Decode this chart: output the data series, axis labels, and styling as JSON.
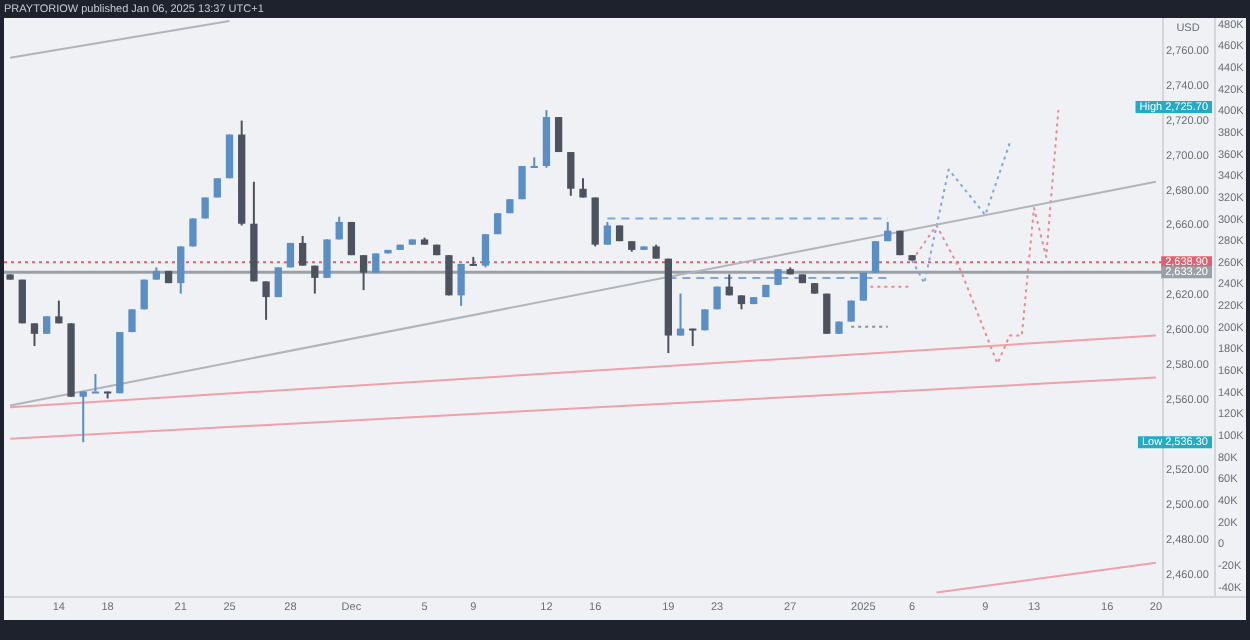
{
  "chart_data": {
    "type": "candlestick",
    "title": "PRAYTORIOW published Jan 06, 2025 13:37 UTC+1",
    "ylabel": "USD",
    "categories": [
      null,
      null,
      null,
      null,
      "14",
      null,
      null,
      null,
      "18",
      null,
      null,
      null,
      null,
      null,
      "21",
      null,
      null,
      null,
      "25",
      null,
      null,
      null,
      null,
      "28",
      null,
      null,
      null,
      null,
      "Dec",
      null,
      null,
      null,
      null,
      null,
      "5",
      null,
      null,
      null,
      "9",
      null,
      null,
      null,
      null,
      null,
      "12",
      null,
      null,
      null,
      "16",
      null,
      null,
      null,
      null,
      null,
      "19",
      null,
      null,
      null,
      "23",
      null,
      null,
      null,
      null,
      null,
      "27",
      null,
      null,
      null,
      null,
      null,
      "2025",
      null,
      null,
      null,
      "6",
      null,
      null,
      null,
      null,
      null,
      "9",
      null,
      null,
      null,
      "13",
      null,
      null,
      null,
      null,
      null,
      "16",
      null,
      null,
      null,
      "20"
    ],
    "ohlc": [
      [
        2632,
        2632,
        2629,
        2629
      ],
      [
        2629,
        2629,
        2604,
        2604
      ],
      [
        2604,
        2604,
        2591,
        2598
      ],
      [
        2598,
        2608,
        2598,
        2608
      ],
      [
        2608,
        2617,
        2604,
        2604
      ],
      [
        2604,
        2604,
        2562,
        2562
      ],
      [
        2562,
        2565,
        2536,
        2565
      ],
      [
        2565,
        2575,
        2565,
        2565
      ],
      [
        2565,
        2565,
        2561,
        2564
      ],
      [
        2564,
        2599,
        2564,
        2599
      ],
      [
        2599,
        2612,
        2599,
        2612
      ],
      [
        2612,
        2629,
        2612,
        2629
      ],
      [
        2629,
        2636,
        2629,
        2634
      ],
      [
        2634,
        2634,
        2627,
        2627
      ],
      [
        2627,
        2648,
        2621,
        2648
      ],
      [
        2648,
        2664,
        2648,
        2664
      ],
      [
        2664,
        2676,
        2664,
        2676
      ],
      [
        2676,
        2687,
        2676,
        2687
      ],
      [
        2687,
        2712,
        2687,
        2712
      ],
      [
        2712,
        2720,
        2660,
        2661
      ],
      [
        2661,
        2685,
        2628,
        2628
      ],
      [
        2628,
        2628,
        2606,
        2619
      ],
      [
        2619,
        2636,
        2619,
        2636
      ],
      [
        2636,
        2650,
        2636,
        2650
      ],
      [
        2650,
        2654,
        2637,
        2637
      ],
      [
        2637,
        2637,
        2621,
        2630
      ],
      [
        2630,
        2652,
        2630,
        2652
      ],
      [
        2652,
        2665,
        2652,
        2662
      ],
      [
        2662,
        2662,
        2643,
        2643
      ],
      [
        2643,
        2643,
        2623,
        2633
      ],
      [
        2633,
        2644,
        2633,
        2644
      ],
      [
        2644,
        2646,
        2644,
        2646
      ],
      [
        2646,
        2649,
        2646,
        2649
      ],
      [
        2649,
        2652,
        2649,
        2652
      ],
      [
        2652,
        2653,
        2649,
        2649
      ],
      [
        2649,
        2649,
        2643,
        2643
      ],
      [
        2643,
        2643,
        2620,
        2620
      ],
      [
        2620,
        2638,
        2614,
        2638
      ],
      [
        2638,
        2642,
        2637,
        2637
      ],
      [
        2637,
        2655,
        2636,
        2655
      ],
      [
        2655,
        2667,
        2655,
        2667
      ],
      [
        2667,
        2675,
        2667,
        2675
      ],
      [
        2675,
        2694,
        2675,
        2694
      ],
      [
        2694,
        2699,
        2694,
        2694
      ],
      [
        2694,
        2726,
        2693,
        2722
      ],
      [
        2722,
        2722,
        2702,
        2702
      ],
      [
        2702,
        2702,
        2677,
        2681
      ],
      [
        2681,
        2687,
        2676,
        2676
      ],
      [
        2676,
        2676,
        2648,
        2649
      ],
      [
        2649,
        2662,
        2649,
        2660
      ],
      [
        2660,
        2660,
        2651,
        2651
      ],
      [
        2651,
        2651,
        2645,
        2646
      ],
      [
        2646,
        2648,
        2646,
        2648
      ],
      [
        2648,
        2649,
        2641,
        2641
      ],
      [
        2641,
        2641,
        2587,
        2597
      ],
      [
        2597,
        2621,
        2597,
        2601
      ],
      [
        2601,
        2601,
        2591,
        2600
      ],
      [
        2600,
        2612,
        2600,
        2612
      ],
      [
        2612,
        2625,
        2612,
        2625
      ],
      [
        2625,
        2632,
        2620,
        2620
      ],
      [
        2620,
        2620,
        2612,
        2615
      ],
      [
        2615,
        2619,
        2615,
        2619
      ],
      [
        2619,
        2626,
        2619,
        2626
      ],
      [
        2626,
        2635,
        2626,
        2635
      ],
      [
        2635,
        2636,
        2632,
        2632
      ],
      [
        2632,
        2632,
        2627,
        2627
      ],
      [
        2627,
        2627,
        2621,
        2621
      ],
      [
        2621,
        2621,
        2598,
        2598
      ],
      [
        2598,
        2605,
        2598,
        2605
      ],
      [
        2605,
        2617,
        2605,
        2617
      ],
      [
        2617,
        2633,
        2617,
        2633
      ],
      [
        2633,
        2651,
        2633,
        2651
      ],
      [
        2651,
        2662,
        2651,
        2657
      ],
      [
        2657,
        2657,
        2643,
        2643
      ],
      [
        2643,
        2643,
        2640,
        2640
      ],
      null,
      null,
      null,
      null,
      null,
      null,
      null,
      null,
      null,
      null,
      null,
      null,
      null,
      null,
      null,
      null,
      null,
      null,
      null,
      null
    ],
    "colors": [
      "#4c525e",
      "#4c525e",
      "#4c525e",
      "#5b8ec2",
      "#4c525e",
      "#4c525e",
      "#5b8ec2",
      "#5b8ec2",
      "#4c525e",
      "#5b8ec2",
      "#5b8ec2",
      "#5b8ec2",
      "#5b8ec2",
      "#4c525e",
      "#5b8ec2",
      "#5b8ec2",
      "#5b8ec2",
      "#5b8ec2",
      "#5b8ec2",
      "#4c525e",
      "#4c525e",
      "#4c525e",
      "#5b8ec2",
      "#5b8ec2",
      "#4c525e",
      "#4c525e",
      "#5b8ec2",
      "#5b8ec2",
      "#4c525e",
      "#4c525e",
      "#5b8ec2",
      "#5b8ec2",
      "#5b8ec2",
      "#5b8ec2",
      "#4c525e",
      "#4c525e",
      "#4c525e",
      "#5b8ec2",
      "#4c525e",
      "#5b8ec2",
      "#5b8ec2",
      "#5b8ec2",
      "#5b8ec2",
      "#5b8ec2",
      "#5b8ec2",
      "#4c525e",
      "#4c525e",
      "#4c525e",
      "#4c525e",
      "#5b8ec2",
      "#4c525e",
      "#4c525e",
      "#5b8ec2",
      "#4c525e",
      "#4c525e",
      "#5b8ec2",
      "#4c525e",
      "#5b8ec2",
      "#5b8ec2",
      "#4c525e",
      "#4c525e",
      "#5b8ec2",
      "#5b8ec2",
      "#5b8ec2",
      "#4c525e",
      "#4c525e",
      "#4c525e",
      "#4c525e",
      "#5b8ec2",
      "#5b8ec2",
      "#5b8ec2",
      "#5b8ec2",
      "#5b8ec2",
      "#4c525e",
      "#4c525e",
      null,
      null,
      null,
      null,
      null,
      null,
      null,
      null,
      null,
      null,
      null,
      null,
      null,
      null,
      null,
      null,
      null,
      null,
      null,
      null
    ],
    "series": [
      {
        "type": "line",
        "color": "#b0b4bc",
        "line_style": "solid",
        "values": [
          2557,
          null,
          null,
          null,
          null,
          null,
          null,
          null,
          null,
          null,
          null,
          null,
          null,
          null,
          null,
          null,
          null,
          null,
          null,
          null,
          null,
          null,
          null,
          null,
          null,
          null,
          null,
          null,
          null,
          null,
          null,
          null,
          null,
          null,
          null,
          null,
          null,
          null,
          null,
          null,
          null,
          null,
          null,
          null,
          null,
          null,
          null,
          null,
          null,
          null,
          null,
          null,
          null,
          null,
          null,
          null,
          null,
          null,
          null,
          null,
          null,
          null,
          null,
          null,
          null,
          null,
          null,
          null,
          null,
          null,
          null,
          null,
          null,
          null,
          null,
          null,
          null,
          null,
          null,
          null,
          null,
          null,
          null,
          null,
          null,
          null,
          null,
          null,
          null,
          null,
          null,
          null,
          null,
          null,
          2685
        ]
      },
      {
        "type": "line",
        "color": "#b0b4bc",
        "line_style": "solid",
        "values": [
          2756,
          null,
          null,
          null,
          null,
          null,
          null,
          null,
          null,
          null,
          null,
          null,
          null,
          null,
          null,
          null,
          null,
          null,
          2777,
          null,
          null,
          null,
          null,
          null,
          null,
          null,
          null,
          null,
          null,
          null,
          null,
          null,
          null,
          null,
          null,
          null,
          null,
          null,
          null,
          null,
          null,
          null,
          null,
          null,
          null,
          null,
          null,
          null,
          null,
          null,
          null,
          null,
          null,
          null,
          null,
          null,
          null,
          null,
          null,
          null,
          null,
          null,
          null,
          null,
          null,
          null,
          null,
          null,
          null,
          null,
          null,
          null,
          null,
          null,
          null,
          null,
          null,
          null,
          null,
          null,
          null,
          null,
          null,
          null,
          null,
          null,
          null,
          null,
          null,
          null,
          null,
          null,
          null,
          null,
          null
        ]
      },
      {
        "type": "line",
        "color": "#f0a0a8",
        "line_style": "solid",
        "values": [
          2556,
          null,
          null,
          null,
          null,
          null,
          null,
          null,
          null,
          null,
          null,
          null,
          null,
          null,
          null,
          null,
          null,
          null,
          null,
          null,
          null,
          null,
          null,
          null,
          null,
          null,
          null,
          null,
          null,
          null,
          null,
          null,
          null,
          null,
          null,
          null,
          null,
          null,
          null,
          null,
          null,
          null,
          null,
          null,
          null,
          null,
          null,
          null,
          null,
          null,
          null,
          null,
          null,
          null,
          null,
          null,
          null,
          null,
          null,
          null,
          null,
          null,
          null,
          null,
          null,
          null,
          null,
          null,
          null,
          null,
          null,
          null,
          null,
          null,
          null,
          null,
          null,
          null,
          null,
          null,
          null,
          null,
          null,
          null,
          null,
          null,
          null,
          null,
          null,
          null,
          null,
          null,
          null,
          null,
          2597
        ]
      },
      {
        "type": "line",
        "color": "#f0a0a8",
        "line_style": "solid",
        "values": [
          2538,
          null,
          null,
          null,
          null,
          null,
          null,
          null,
          null,
          null,
          null,
          null,
          null,
          null,
          null,
          null,
          null,
          null,
          null,
          null,
          null,
          null,
          null,
          null,
          null,
          null,
          null,
          null,
          null,
          null,
          null,
          null,
          null,
          null,
          null,
          null,
          null,
          null,
          null,
          null,
          null,
          null,
          null,
          null,
          null,
          null,
          null,
          null,
          null,
          null,
          null,
          null,
          null,
          null,
          null,
          null,
          null,
          null,
          null,
          null,
          null,
          null,
          null,
          null,
          null,
          null,
          null,
          null,
          null,
          null,
          null,
          null,
          null,
          null,
          null,
          null,
          null,
          null,
          null,
          null,
          null,
          null,
          null,
          null,
          null,
          null,
          null,
          null,
          null,
          null,
          null,
          null,
          null,
          null,
          2573
        ]
      },
      {
        "type": "line",
        "color": "#f0a0a8",
        "line_style": "solid",
        "values": [
          null,
          null,
          null,
          null,
          null,
          null,
          null,
          null,
          null,
          null,
          null,
          null,
          null,
          null,
          null,
          null,
          null,
          null,
          null,
          null,
          null,
          null,
          null,
          null,
          null,
          null,
          null,
          null,
          null,
          null,
          null,
          null,
          null,
          null,
          null,
          null,
          null,
          null,
          null,
          null,
          null,
          null,
          null,
          null,
          null,
          null,
          null,
          null,
          null,
          null,
          null,
          null,
          null,
          null,
          null,
          null,
          null,
          null,
          null,
          null,
          null,
          null,
          null,
          null,
          null,
          null,
          null,
          null,
          null,
          null,
          null,
          null,
          null,
          null,
          null,
          null,
          2450,
          null,
          null,
          null,
          null,
          null,
          null,
          null,
          null,
          null,
          null,
          null,
          null,
          null,
          null,
          null,
          null,
          null,
          2467
        ]
      },
      {
        "type": "line",
        "color": "#7fa6e0",
        "line_style": "dashed",
        "values": [
          null,
          null,
          null,
          null,
          null,
          null,
          null,
          null,
          null,
          null,
          null,
          null,
          null,
          null,
          null,
          null,
          null,
          null,
          null,
          null,
          null,
          null,
          null,
          null,
          null,
          null,
          null,
          null,
          null,
          null,
          null,
          null,
          null,
          null,
          null,
          null,
          null,
          null,
          null,
          null,
          null,
          null,
          null,
          null,
          null,
          null,
          null,
          null,
          null,
          2664,
          null,
          null,
          null,
          null,
          null,
          null,
          null,
          null,
          null,
          null,
          null,
          null,
          null,
          null,
          null,
          null,
          null,
          null,
          null,
          null,
          null,
          null,
          2664,
          null,
          null,
          null,
          null,
          null,
          null,
          null,
          null,
          null,
          null,
          null,
          null,
          null,
          null,
          null,
          null,
          null,
          null,
          null,
          null,
          null,
          null
        ]
      },
      {
        "type": "line",
        "color": "#7fa6e0",
        "line_style": "dashed",
        "values": [
          null,
          null,
          null,
          null,
          null,
          null,
          null,
          null,
          null,
          null,
          null,
          null,
          null,
          null,
          null,
          null,
          null,
          null,
          null,
          null,
          null,
          null,
          null,
          null,
          null,
          null,
          null,
          null,
          null,
          null,
          null,
          null,
          null,
          null,
          null,
          null,
          null,
          null,
          null,
          null,
          null,
          null,
          null,
          null,
          null,
          null,
          null,
          null,
          null,
          null,
          null,
          null,
          null,
          null,
          2630,
          null,
          null,
          null,
          null,
          null,
          null,
          null,
          null,
          null,
          null,
          null,
          null,
          null,
          null,
          null,
          null,
          null,
          2630,
          null,
          null,
          null,
          null,
          null,
          null,
          null,
          null,
          null,
          null,
          null,
          null,
          null,
          null,
          null,
          null,
          null,
          null,
          null,
          null,
          null,
          null
        ]
      },
      {
        "type": "line",
        "color": "#e88a92",
        "line_style": "dotted",
        "values": [
          null,
          null,
          null,
          null,
          null,
          null,
          null,
          null,
          null,
          null,
          null,
          null,
          null,
          null,
          null,
          null,
          null,
          null,
          null,
          null,
          null,
          null,
          null,
          null,
          null,
          null,
          null,
          null,
          null,
          null,
          null,
          null,
          null,
          null,
          null,
          null,
          null,
          null,
          null,
          null,
          null,
          null,
          null,
          null,
          null,
          null,
          null,
          null,
          null,
          null,
          null,
          null,
          null,
          null,
          null,
          null,
          null,
          null,
          null,
          null,
          null,
          null,
          null,
          null,
          null,
          null,
          null,
          null,
          null,
          null,
          2625,
          null,
          null,
          null,
          2625,
          null,
          null,
          null,
          null,
          null,
          null,
          null,
          null,
          null,
          null,
          null,
          null,
          null,
          null,
          null,
          null,
          null,
          null,
          null,
          null
        ]
      },
      {
        "type": "line",
        "color": "#8a8e96",
        "line_style": "dotted",
        "values": [
          null,
          null,
          null,
          null,
          null,
          null,
          null,
          null,
          null,
          null,
          null,
          null,
          null,
          null,
          null,
          null,
          null,
          null,
          null,
          null,
          null,
          null,
          null,
          null,
          null,
          null,
          null,
          null,
          null,
          null,
          null,
          null,
          null,
          null,
          null,
          null,
          null,
          null,
          null,
          null,
          null,
          null,
          null,
          null,
          null,
          null,
          null,
          null,
          null,
          null,
          null,
          null,
          null,
          null,
          null,
          null,
          null,
          null,
          null,
          null,
          null,
          null,
          null,
          null,
          null,
          null,
          null,
          null,
          null,
          2602,
          null,
          null,
          2602,
          null,
          null,
          null,
          null,
          null,
          null,
          null,
          null,
          null,
          null,
          null,
          null,
          null,
          null,
          null,
          null,
          null,
          null,
          null,
          null,
          null,
          null
        ]
      },
      {
        "type": "line",
        "color": "#7fa6e0",
        "line_style": "dotted",
        "values": [
          null,
          null,
          null,
          null,
          null,
          null,
          null,
          null,
          null,
          null,
          null,
          null,
          null,
          null,
          null,
          null,
          null,
          null,
          null,
          null,
          null,
          null,
          null,
          null,
          null,
          null,
          null,
          null,
          null,
          null,
          null,
          null,
          null,
          null,
          null,
          null,
          null,
          null,
          null,
          null,
          null,
          null,
          null,
          null,
          null,
          null,
          null,
          null,
          null,
          null,
          null,
          null,
          null,
          null,
          null,
          null,
          null,
          null,
          null,
          null,
          null,
          null,
          null,
          null,
          null,
          null,
          null,
          null,
          null,
          null,
          null,
          null,
          null,
          null,
          2640,
          2627,
          null,
          2692,
          null,
          null,
          2666,
          null,
          2707,
          null,
          null,
          null,
          null,
          null,
          null,
          null,
          null,
          null,
          null,
          null,
          null
        ]
      },
      {
        "type": "line",
        "color": "#e88a92",
        "line_style": "dotted",
        "values": [
          null,
          null,
          null,
          null,
          null,
          null,
          null,
          null,
          null,
          null,
          null,
          null,
          null,
          null,
          null,
          null,
          null,
          null,
          null,
          null,
          null,
          null,
          null,
          null,
          null,
          null,
          null,
          null,
          null,
          null,
          null,
          null,
          null,
          null,
          null,
          null,
          null,
          null,
          null,
          null,
          null,
          null,
          null,
          null,
          null,
          null,
          null,
          null,
          null,
          null,
          null,
          null,
          null,
          null,
          null,
          null,
          null,
          null,
          null,
          null,
          null,
          null,
          null,
          null,
          null,
          null,
          null,
          null,
          null,
          null,
          null,
          null,
          null,
          null,
          2640,
          null,
          2660,
          null,
          2634,
          null,
          null,
          2581,
          2597,
          2597,
          2670,
          2642,
          2726,
          null,
          null,
          null,
          null,
          null,
          null,
          null,
          null
        ]
      }
    ],
    "ref_lines": [
      {
        "axis": "y",
        "value": 2638.9,
        "label": "2,638.90",
        "color": "#e06070",
        "line_style": "dotted"
      },
      {
        "axis": "y",
        "value": 2633.2,
        "label": "2,633.20",
        "color": "#9aa0a8",
        "line_style": "solid"
      }
    ],
    "annotations": [
      "High 2,725.70",
      "Low 2,536.30"
    ],
    "ylim": [
      2448,
      2778
    ],
    "yticks": [
      {
        "value": 2460,
        "label": "2,460.00"
      },
      {
        "value": 2480,
        "label": "2,480.00"
      },
      {
        "value": 2500,
        "label": "2,500.00"
      },
      {
        "value": 2520,
        "label": "2,520.00"
      },
      {
        "value": 2560,
        "label": "2,560.00"
      },
      {
        "value": 2580,
        "label": "2,580.00"
      },
      {
        "value": 2600,
        "label": "2,600.00"
      },
      {
        "value": 2620,
        "label": "2,620.00"
      },
      {
        "value": 2660,
        "label": "2,660.00"
      },
      {
        "value": 2680,
        "label": "2,680.00"
      },
      {
        "value": 2700,
        "label": "2,700.00"
      },
      {
        "value": 2720,
        "label": "2,720.00"
      },
      {
        "value": 2740,
        "label": "2,740.00"
      },
      {
        "value": 2760,
        "label": "2,760.00"
      }
    ],
    "y2lim": [
      -47800,
      485000
    ],
    "y2ticks": [
      {
        "value": -40000,
        "label": "-40K"
      },
      {
        "value": -20000,
        "label": "-20K"
      },
      {
        "value": 0,
        "label": "0"
      },
      {
        "value": 20000,
        "label": "20K"
      },
      {
        "value": 40000,
        "label": "40K"
      },
      {
        "value": 60000,
        "label": "60K"
      },
      {
        "value": 80000,
        "label": "80K"
      },
      {
        "value": 100000,
        "label": "100K"
      },
      {
        "value": 120000,
        "label": "120K"
      },
      {
        "value": 140000,
        "label": "140K"
      },
      {
        "value": 160000,
        "label": "160K"
      },
      {
        "value": 180000,
        "label": "180K"
      },
      {
        "value": 200000,
        "label": "200K"
      },
      {
        "value": 220000,
        "label": "220K"
      },
      {
        "value": 240000,
        "label": "240K"
      },
      {
        "value": 260000,
        "label": "260K"
      },
      {
        "value": 280000,
        "label": "280K"
      },
      {
        "value": 300000,
        "label": "300K"
      },
      {
        "value": 320000,
        "label": "320K"
      },
      {
        "value": 340000,
        "label": "340K"
      },
      {
        "value": 360000,
        "label": "360K"
      },
      {
        "value": 380000,
        "label": "380K"
      },
      {
        "value": 400000,
        "label": "400K"
      },
      {
        "value": 420000,
        "label": "420K"
      },
      {
        "value": 440000,
        "label": "440K"
      },
      {
        "value": 460000,
        "label": "460K"
      },
      {
        "value": 480000,
        "label": "480K"
      }
    ],
    "grid": false,
    "legend": false,
    "marker": "none"
  }
}
